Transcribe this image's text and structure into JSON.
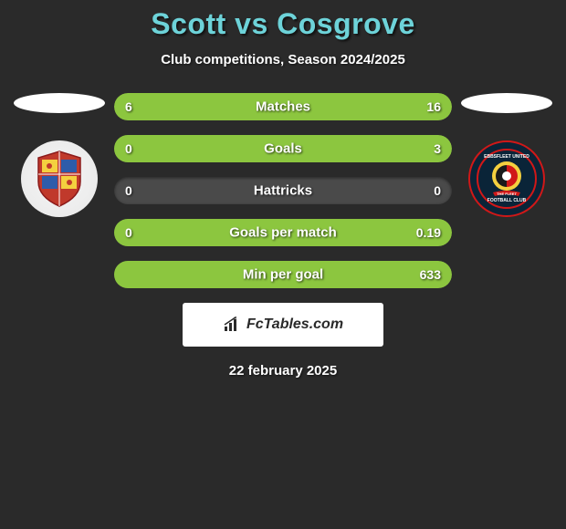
{
  "title": "Scott vs Cosgrove",
  "subtitle": "Club competitions, Season 2024/2025",
  "date": "22 february 2025",
  "watermark_text": "FcTables.com",
  "colors": {
    "background": "#2a2a2a",
    "title": "#6dd3d9",
    "text": "#ffffff",
    "bar_bg": "#4a4a4a",
    "bar_fill": "#8cc63f",
    "watermark_bg": "#ffffff",
    "watermark_text": "#2a2a2a"
  },
  "stats": [
    {
      "label": "Matches",
      "left_val": "6",
      "right_val": "16",
      "left_pct": 27,
      "right_pct": 73
    },
    {
      "label": "Goals",
      "left_val": "0",
      "right_val": "3",
      "left_pct": 0,
      "right_pct": 100
    },
    {
      "label": "Hattricks",
      "left_val": "0",
      "right_val": "0",
      "left_pct": 0,
      "right_pct": 0
    },
    {
      "label": "Goals per match",
      "left_val": "0",
      "right_val": "0.19",
      "left_pct": 0,
      "right_pct": 100
    },
    {
      "label": "Min per goal",
      "left_val": "",
      "right_val": "633",
      "left_pct": 0,
      "right_pct": 100
    }
  ]
}
